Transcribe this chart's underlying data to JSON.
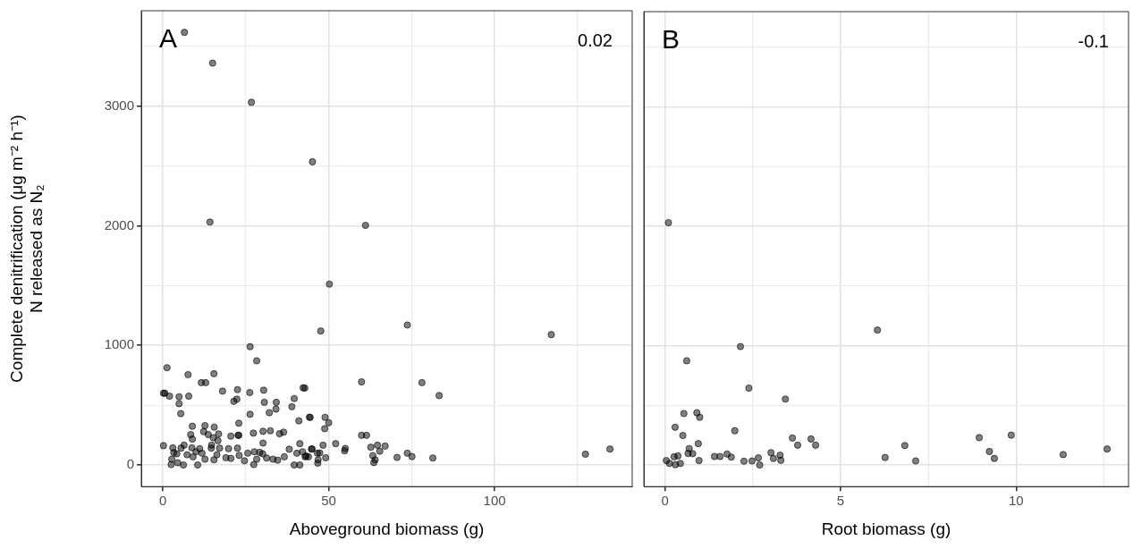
{
  "chart_data": [
    {
      "type": "scatter",
      "xlabel": "Aboveground biomass (g)",
      "ylabel": "Complete denitrification (μg m⁻² h⁻¹)\nN released as N₂",
      "annotations": [
        "A",
        "0.02"
      ],
      "marker": "circle",
      "grid": true,
      "xlim": [
        -6.5,
        141.5
      ],
      "xticks": [
        0,
        {
          "value": 25,
          "label": null
        },
        50,
        {
          "value": 75,
          "label": null
        },
        100,
        {
          "value": 125,
          "label": null
        }
      ],
      "ylim": [
        -181,
        3798
      ],
      "yticks": [
        0,
        {
          "value": 500,
          "label": null
        },
        1000,
        {
          "value": 1500,
          "label": null
        },
        2000,
        {
          "value": 2500,
          "label": null
        },
        3000,
        {
          "value": 3500,
          "label": null
        }
      ],
      "series": [
        {
          "color": "#000000",
          "x": [
            6.5,
            15,
            26.7,
            45.1,
            14.2,
            61.1,
            50.2,
            47.6,
            73.7,
            117.1,
            59.9,
            78.1,
            83.3,
            42.8,
            44.4,
            48.9,
            50,
            48.8,
            59.9,
            61.4,
            52.1,
            55,
            54.8,
            62.7,
            64.7,
            67,
            65.4,
            63.3,
            64,
            63.6,
            70.6,
            73.7,
            75.1,
            81.4,
            127.4,
            134.8,
            48.3,
            45,
            47.3,
            49.1,
            46.7,
            43.2,
            1.25,
            7.6,
            15.4,
            11.6,
            12.9,
            0.6,
            0.2,
            2,
            4.9,
            7.8,
            4.9,
            5.4,
            18,
            22.5,
            21.4,
            22.3,
            26.2,
            30.4,
            28.3,
            26.3,
            30.6,
            34.2,
            34.1,
            32.1,
            26.3,
            39.6,
            42.3,
            38.9,
            41,
            44.2,
            8.9,
            12.7,
            15.5,
            22.9,
            8.4,
            12.3,
            13.7,
            8.9,
            15.2,
            16.8,
            16.6,
            20.5,
            22.9,
            27.3,
            30.2,
            32.4,
            35.2,
            36.4,
            30.2,
            41.3,
            0.2,
            6.4,
            14.7,
            22.7,
            3,
            3.3,
            2.7,
            2.5,
            4.5,
            6.2,
            7.3,
            9.1,
            8.75,
            11.8,
            12.7,
            10.5,
            15.4,
            14.6,
            16.3,
            17.1,
            19,
            20.5,
            19.8,
            22.5,
            23,
            24.6,
            25.6,
            27.6,
            29.2,
            27.4,
            28.3,
            30.1,
            31.3,
            33.2,
            34.6,
            36.6,
            38.1,
            40.4,
            42.1,
            42.9,
            44.8,
            46.6,
            46.8,
            39.6,
            41.3,
            43.9,
            5.5,
            4.2,
            10,
            11.1
          ],
          "values": [
            3617,
            3360,
            3032,
            2535,
            2031,
            2003,
            1512,
            1120,
            1170,
            1090,
            695,
            688,
            580,
            643,
            398,
            398,
            353,
            303,
            248,
            248,
            178,
            138,
            118,
            148,
            165,
            158,
            115,
            78,
            43,
            20,
            63,
            98,
            70,
            58,
            90,
            133,
            165,
            133,
            100,
            60,
            15,
            75,
            813,
            755,
            763,
            688,
            688,
            600,
            600,
            575,
            570,
            575,
            512,
            429,
            617,
            630,
            532,
            550,
            605,
            625,
            871,
            989,
            524,
            524,
            467,
            437,
            424,
            555,
            645,
            487,
            369,
            399,
            324,
            329,
            316,
            349,
            254,
            279,
            254,
            216,
            228,
            259,
            203,
            241,
            248,
            266,
            281,
            286,
            261,
            274,
            183,
            178,
            161,
            166,
            166,
            248,
            143,
            103,
            48,
            3,
            18,
            0,
            85,
            68,
            143,
            98,
            48,
            0,
            43,
            141,
            85,
            141,
            60,
            55,
            136,
            141,
            80,
            35,
            98,
            110,
            105,
            3,
            48,
            93,
            58,
            48,
            40,
            68,
            131,
            98,
            110,
            68,
            133,
            98,
            43,
            0,
            0,
            68,
            141,
            93,
            110,
            136
          ]
        }
      ]
    },
    {
      "type": "scatter",
      "xlabel": "Root biomass (g)",
      "annotations": [
        "B",
        "-0.1"
      ],
      "marker": "circle",
      "grid": true,
      "tick_labels": "x",
      "xlim": [
        -0.6,
        13.2
      ],
      "xticks": [
        0,
        {
          "value": 2.5,
          "label": null
        },
        5,
        {
          "value": 7.5,
          "label": null
        },
        10,
        {
          "value": 12.5,
          "label": null
        }
      ],
      "ylim": [
        -181,
        3798
      ],
      "yticks": [
        0,
        {
          "value": 500,
          "label": null
        },
        1000,
        {
          "value": 1500,
          "label": null
        },
        2000,
        {
          "value": 2500,
          "label": null
        },
        3000,
        {
          "value": 3500,
          "label": null
        }
      ],
      "series": [
        {
          "color": "#000000",
          "x": [
            0.1,
            6.05,
            0.62,
            2.15,
            2.39,
            3.43,
            0.54,
            0.91,
            0.99,
            0.29,
            1.99,
            0.51,
            3.63,
            4.16,
            3.78,
            4.29,
            0.95,
            0.69,
            0.66,
            0.79,
            0.37,
            0.26,
            0.04,
            0.13,
            0.3,
            0.44,
            0.97,
            1.41,
            1.57,
            1.77,
            1.89,
            2.25,
            2.48,
            2.66,
            2.7,
            3.02,
            3.09,
            3.28,
            3.3,
            6.27,
            6.83,
            7.14,
            8.95,
            9.86,
            9.24,
            9.38,
            11.34,
            12.59
          ],
          "values": [
            2030,
            1130,
            873,
            992,
            644,
            552,
            431,
            437,
            400,
            316,
            287,
            247,
            226,
            218,
            166,
            166,
            179,
            137,
            97,
            95,
            76,
            68,
            37,
            13,
            3,
            13,
            37,
            71,
            71,
            92,
            66,
            32,
            34,
            60,
            0,
            103,
            55,
            82,
            39,
            63,
            163,
            34,
            229,
            250,
            113,
            55,
            87,
            134
          ]
        }
      ]
    }
  ]
}
